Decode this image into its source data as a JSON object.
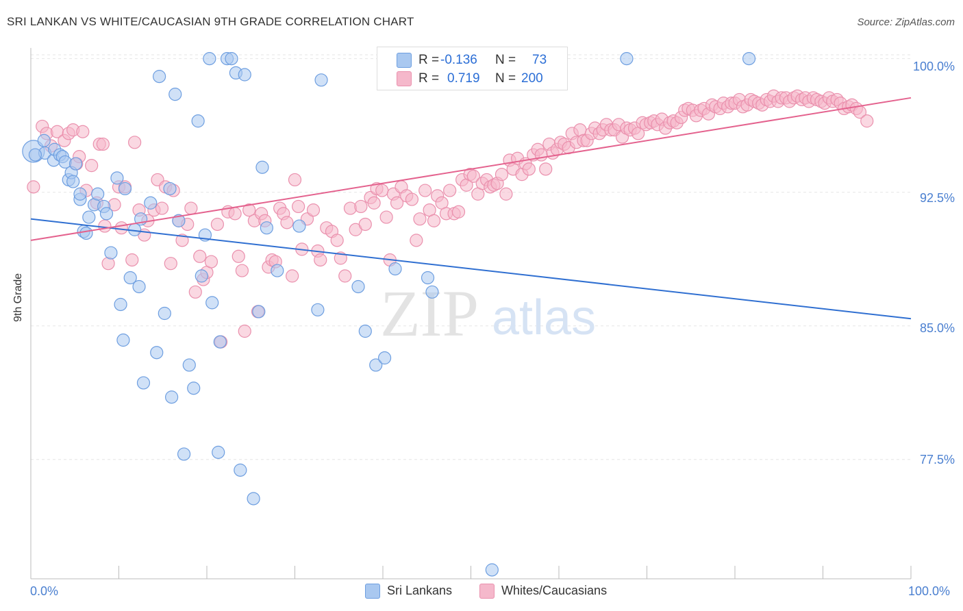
{
  "title": "SRI LANKAN VS WHITE/CAUCASIAN 9TH GRADE CORRELATION CHART",
  "source": "Source: ZipAtlas.com",
  "watermark": {
    "zip": "ZIP",
    "atlas": "atlas"
  },
  "colors": {
    "blue_fill": "#a9c8f0",
    "blue_stroke": "#6d9ee0",
    "blue_line": "#2f6fd1",
    "pink_fill": "#f5b8cb",
    "pink_stroke": "#ea90ad",
    "pink_line": "#e4628e",
    "tick_label": "#4a7fd0",
    "grid": "#e6e6e6"
  },
  "legend": {
    "rows": [
      {
        "r_label": "R =",
        "r_value": "-0.136",
        "n_label": "N =",
        "n_value": "73"
      },
      {
        "r_label": "R =",
        "r_value": "0.719",
        "n_label": "N =",
        "n_value": "200"
      }
    ]
  },
  "bottom_legend": {
    "items": [
      "Sri Lankans",
      "Whites/Caucasians"
    ]
  },
  "chart_data": {
    "type": "scatter",
    "ylabel": "9th Grade",
    "xlabel": "",
    "x_tick_labels": [
      "0.0%",
      "100.0%"
    ],
    "y_tick_labels": [
      "100.0%",
      "92.5%",
      "85.0%",
      "77.5%"
    ],
    "y_ticks": [
      100.0,
      92.5,
      85.0,
      77.5
    ],
    "xlim": [
      0,
      100
    ],
    "ylim": [
      70.8,
      100.6
    ],
    "grid": true,
    "legend_position": "top-center",
    "series": [
      {
        "name": "Sri Lankans",
        "trend": {
          "x0": 0,
          "y0": 91.0,
          "x1": 100,
          "y1": 85.4
        },
        "points": [
          [
            0.3,
            94.8
          ],
          [
            1.5,
            95.4
          ],
          [
            1.6,
            94.7
          ],
          [
            2.6,
            94.3
          ],
          [
            2.7,
            94.9
          ],
          [
            3.3,
            94.6
          ],
          [
            3.6,
            94.5
          ],
          [
            3.9,
            94.2
          ],
          [
            4.3,
            93.2
          ],
          [
            4.6,
            93.6
          ],
          [
            4.8,
            93.1
          ],
          [
            5.1,
            94.1
          ],
          [
            5.6,
            92.1
          ],
          [
            5.6,
            92.4
          ],
          [
            6.0,
            90.3
          ],
          [
            6.3,
            90.2
          ],
          [
            6.6,
            91.1
          ],
          [
            7.2,
            91.8
          ],
          [
            7.6,
            92.4
          ],
          [
            8.3,
            91.7
          ],
          [
            8.6,
            91.3
          ],
          [
            9.1,
            89.1
          ],
          [
            9.8,
            93.3
          ],
          [
            10.2,
            86.2
          ],
          [
            10.5,
            84.2
          ],
          [
            10.7,
            92.7
          ],
          [
            11.3,
            87.7
          ],
          [
            11.8,
            90.4
          ],
          [
            12.3,
            87.2
          ],
          [
            12.5,
            91.0
          ],
          [
            12.8,
            81.8
          ],
          [
            13.6,
            91.9
          ],
          [
            14.3,
            83.5
          ],
          [
            14.6,
            99.0
          ],
          [
            15.2,
            85.7
          ],
          [
            15.8,
            92.7
          ],
          [
            16.0,
            81.0
          ],
          [
            16.4,
            98.0
          ],
          [
            16.8,
            90.9
          ],
          [
            17.4,
            77.8
          ],
          [
            18.0,
            82.8
          ],
          [
            18.5,
            81.5
          ],
          [
            19.0,
            96.5
          ],
          [
            19.4,
            87.8
          ],
          [
            19.8,
            90.1
          ],
          [
            20.3,
            100.0
          ],
          [
            20.6,
            86.3
          ],
          [
            21.3,
            77.9
          ],
          [
            21.5,
            84.1
          ],
          [
            22.3,
            100.0
          ],
          [
            22.8,
            100.0
          ],
          [
            23.3,
            99.2
          ],
          [
            23.8,
            76.9
          ],
          [
            24.3,
            99.1
          ],
          [
            25.3,
            75.3
          ],
          [
            25.9,
            85.8
          ],
          [
            26.3,
            93.9
          ],
          [
            26.8,
            90.5
          ],
          [
            28.0,
            88.1
          ],
          [
            30.5,
            90.6
          ],
          [
            32.6,
            85.9
          ],
          [
            33.0,
            98.8
          ],
          [
            37.2,
            87.2
          ],
          [
            38.0,
            84.7
          ],
          [
            39.2,
            82.8
          ],
          [
            40.2,
            83.2
          ],
          [
            41.4,
            88.2
          ],
          [
            45.1,
            87.7
          ],
          [
            45.6,
            86.9
          ],
          [
            52.4,
            71.3
          ],
          [
            67.7,
            100.0
          ],
          [
            81.6,
            100.0
          ],
          [
            0.5,
            94.6
          ]
        ]
      },
      {
        "name": "Whites/Caucasians",
        "trend": {
          "x0": 0,
          "y0": 89.8,
          "x1": 100,
          "y1": 97.8
        },
        "points": [
          [
            0.3,
            92.8
          ],
          [
            1.3,
            96.2
          ],
          [
            1.8,
            95.8
          ],
          [
            2.3,
            95.1
          ],
          [
            3.0,
            95.9
          ],
          [
            3.8,
            95.4
          ],
          [
            4.3,
            95.8
          ],
          [
            4.8,
            96.0
          ],
          [
            5.2,
            94.1
          ],
          [
            5.5,
            94.5
          ],
          [
            5.9,
            95.9
          ],
          [
            6.3,
            92.6
          ],
          [
            6.9,
            94.0
          ],
          [
            7.5,
            91.9
          ],
          [
            7.8,
            95.2
          ],
          [
            8.2,
            95.2
          ],
          [
            8.4,
            90.6
          ],
          [
            8.8,
            88.5
          ],
          [
            9.5,
            91.8
          ],
          [
            10.0,
            92.8
          ],
          [
            10.3,
            90.5
          ],
          [
            10.7,
            92.8
          ],
          [
            11.5,
            88.7
          ],
          [
            11.8,
            95.3
          ],
          [
            12.3,
            91.5
          ],
          [
            12.9,
            90.1
          ],
          [
            13.3,
            90.9
          ],
          [
            14.0,
            91.5
          ],
          [
            14.4,
            93.2
          ],
          [
            14.9,
            91.6
          ],
          [
            15.3,
            92.8
          ],
          [
            15.9,
            88.5
          ],
          [
            16.2,
            92.6
          ],
          [
            16.8,
            90.9
          ],
          [
            17.2,
            89.8
          ],
          [
            17.8,
            90.7
          ],
          [
            18.2,
            91.6
          ],
          [
            18.7,
            86.9
          ],
          [
            19.2,
            88.9
          ],
          [
            19.6,
            87.6
          ],
          [
            20.0,
            88.0
          ],
          [
            20.5,
            88.6
          ],
          [
            21.2,
            90.7
          ],
          [
            21.6,
            84.1
          ],
          [
            22.4,
            91.4
          ],
          [
            23.2,
            91.3
          ],
          [
            23.6,
            88.9
          ],
          [
            24.0,
            88.1
          ],
          [
            24.3,
            84.7
          ],
          [
            24.8,
            91.5
          ],
          [
            25.4,
            90.9
          ],
          [
            25.8,
            85.8
          ],
          [
            26.2,
            91.3
          ],
          [
            26.6,
            90.9
          ],
          [
            27.0,
            88.3
          ],
          [
            27.4,
            88.7
          ],
          [
            27.8,
            88.6
          ],
          [
            28.3,
            91.6
          ],
          [
            28.7,
            91.3
          ],
          [
            29.1,
            90.8
          ],
          [
            29.7,
            87.8
          ],
          [
            30.0,
            93.2
          ],
          [
            30.4,
            91.7
          ],
          [
            30.8,
            89.3
          ],
          [
            31.4,
            91.0
          ],
          [
            32.1,
            91.5
          ],
          [
            32.6,
            89.2
          ],
          [
            32.9,
            88.7
          ],
          [
            33.6,
            90.5
          ],
          [
            34.2,
            90.3
          ],
          [
            34.8,
            89.8
          ],
          [
            35.2,
            88.8
          ],
          [
            35.7,
            87.8
          ],
          [
            36.3,
            91.6
          ],
          [
            36.9,
            90.4
          ],
          [
            37.5,
            91.7
          ],
          [
            38.0,
            90.7
          ],
          [
            38.6,
            92.2
          ],
          [
            39.0,
            91.9
          ],
          [
            39.3,
            92.7
          ],
          [
            39.9,
            92.6
          ],
          [
            40.4,
            91.1
          ],
          [
            40.8,
            88.7
          ],
          [
            41.2,
            92.4
          ],
          [
            41.6,
            91.9
          ],
          [
            42.1,
            92.8
          ],
          [
            42.7,
            92.3
          ],
          [
            43.3,
            92.1
          ],
          [
            43.8,
            89.8
          ],
          [
            44.2,
            91.0
          ],
          [
            44.8,
            92.6
          ],
          [
            45.3,
            91.5
          ],
          [
            45.8,
            90.9
          ],
          [
            46.2,
            92.3
          ],
          [
            46.7,
            91.9
          ],
          [
            47.2,
            91.3
          ],
          [
            47.6,
            92.6
          ],
          [
            48.1,
            91.3
          ],
          [
            48.6,
            91.4
          ],
          [
            49.0,
            93.2
          ],
          [
            49.5,
            92.9
          ],
          [
            49.9,
            93.5
          ],
          [
            50.3,
            93.4
          ],
          [
            50.8,
            92.4
          ],
          [
            51.3,
            93.0
          ],
          [
            51.8,
            93.2
          ],
          [
            52.2,
            92.8
          ],
          [
            52.6,
            92.9
          ],
          [
            53.0,
            93.0
          ],
          [
            53.5,
            93.5
          ],
          [
            54.0,
            92.4
          ],
          [
            54.4,
            94.3
          ],
          [
            54.8,
            93.8
          ],
          [
            55.3,
            94.4
          ],
          [
            55.8,
            93.5
          ],
          [
            56.2,
            94.1
          ],
          [
            56.6,
            93.8
          ],
          [
            57.1,
            94.6
          ],
          [
            57.6,
            94.9
          ],
          [
            58.0,
            94.6
          ],
          [
            58.5,
            93.8
          ],
          [
            58.9,
            95.2
          ],
          [
            59.3,
            94.7
          ],
          [
            59.8,
            94.9
          ],
          [
            60.2,
            95.3
          ],
          [
            60.6,
            95.2
          ],
          [
            61.1,
            95.0
          ],
          [
            61.5,
            95.8
          ],
          [
            62.0,
            95.3
          ],
          [
            62.4,
            96.0
          ],
          [
            62.8,
            95.4
          ],
          [
            63.2,
            95.4
          ],
          [
            63.7,
            95.8
          ],
          [
            64.1,
            96.1
          ],
          [
            64.6,
            95.8
          ],
          [
            65.0,
            96.0
          ],
          [
            65.4,
            96.3
          ],
          [
            65.9,
            96.0
          ],
          [
            66.3,
            96.0
          ],
          [
            66.8,
            96.3
          ],
          [
            67.2,
            95.6
          ],
          [
            67.7,
            96.1
          ],
          [
            68.1,
            96.0
          ],
          [
            68.6,
            96.1
          ],
          [
            69.0,
            95.8
          ],
          [
            69.5,
            96.4
          ],
          [
            69.9,
            96.3
          ],
          [
            70.4,
            96.4
          ],
          [
            70.8,
            96.5
          ],
          [
            71.2,
            96.3
          ],
          [
            71.7,
            96.6
          ],
          [
            72.1,
            96.1
          ],
          [
            72.6,
            96.4
          ],
          [
            73.0,
            96.5
          ],
          [
            73.4,
            96.4
          ],
          [
            73.9,
            96.7
          ],
          [
            74.3,
            97.1
          ],
          [
            74.7,
            97.2
          ],
          [
            75.2,
            97.1
          ],
          [
            75.6,
            96.8
          ],
          [
            76.1,
            97.1
          ],
          [
            76.5,
            97.2
          ],
          [
            77.0,
            96.9
          ],
          [
            77.4,
            97.4
          ],
          [
            77.8,
            97.3
          ],
          [
            78.3,
            97.2
          ],
          [
            78.7,
            97.5
          ],
          [
            79.2,
            97.3
          ],
          [
            79.6,
            97.5
          ],
          [
            80.0,
            97.5
          ],
          [
            80.5,
            97.7
          ],
          [
            80.9,
            97.3
          ],
          [
            81.4,
            97.4
          ],
          [
            81.8,
            97.7
          ],
          [
            82.2,
            97.6
          ],
          [
            82.7,
            97.5
          ],
          [
            83.1,
            97.4
          ],
          [
            83.6,
            97.7
          ],
          [
            84.0,
            97.6
          ],
          [
            84.4,
            97.9
          ],
          [
            84.9,
            97.6
          ],
          [
            85.3,
            97.8
          ],
          [
            85.8,
            97.8
          ],
          [
            86.2,
            97.6
          ],
          [
            86.7,
            97.8
          ],
          [
            87.1,
            97.9
          ],
          [
            87.6,
            97.7
          ],
          [
            88.0,
            97.8
          ],
          [
            88.4,
            97.6
          ],
          [
            88.9,
            97.8
          ],
          [
            89.3,
            97.7
          ],
          [
            89.8,
            97.6
          ],
          [
            90.2,
            97.5
          ],
          [
            90.7,
            97.8
          ],
          [
            91.1,
            97.6
          ],
          [
            91.6,
            97.7
          ],
          [
            92.0,
            97.5
          ],
          [
            92.4,
            97.2
          ],
          [
            92.9,
            97.3
          ],
          [
            93.3,
            97.4
          ],
          [
            93.8,
            97.2
          ],
          [
            94.2,
            97.0
          ],
          [
            95.0,
            96.5
          ]
        ]
      }
    ]
  }
}
